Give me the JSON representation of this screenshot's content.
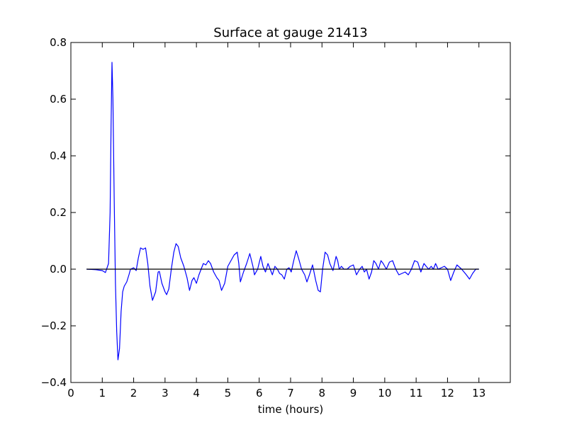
{
  "chart_data": {
    "type": "line",
    "title": "Surface at gauge 21413",
    "xlabel": "time (hours)",
    "ylabel": "",
    "xlim": [
      0,
      14
    ],
    "ylim": [
      -0.4,
      0.8
    ],
    "x_ticks": [
      0,
      1,
      2,
      3,
      4,
      5,
      6,
      7,
      8,
      9,
      10,
      11,
      12,
      13
    ],
    "x_tick_labels": [
      "0",
      "1",
      "2",
      "3",
      "4",
      "5",
      "6",
      "7",
      "8",
      "9",
      "10",
      "11",
      "12",
      "13"
    ],
    "y_ticks": [
      -0.4,
      -0.2,
      0.0,
      0.2,
      0.4,
      0.6,
      0.8
    ],
    "y_tick_labels": [
      "−0.4",
      "−0.2",
      "0.0",
      "0.2",
      "0.4",
      "0.6",
      "0.8"
    ],
    "grid": false,
    "series": [
      {
        "color": "#0000ff",
        "x": [
          0.5,
          0.8,
          1.0,
          1.1,
          1.2,
          1.25,
          1.28,
          1.31,
          1.34,
          1.38,
          1.42,
          1.46,
          1.5,
          1.55,
          1.6,
          1.65,
          1.7,
          1.78,
          1.85,
          1.9,
          2.0,
          2.08,
          2.15,
          2.22,
          2.3,
          2.38,
          2.45,
          2.52,
          2.6,
          2.7,
          2.78,
          2.82,
          2.9,
          3.0,
          3.05,
          3.12,
          3.2,
          3.28,
          3.35,
          3.42,
          3.5,
          3.6,
          3.7,
          3.78,
          3.86,
          3.92,
          4.0,
          4.08,
          4.15,
          4.22,
          4.3,
          4.38,
          4.45,
          4.55,
          4.65,
          4.72,
          4.8,
          4.9,
          5.0,
          5.1,
          5.2,
          5.3,
          5.35,
          5.4,
          5.5,
          5.6,
          5.7,
          5.8,
          5.85,
          5.95,
          6.05,
          6.12,
          6.2,
          6.28,
          6.35,
          6.42,
          6.5,
          6.58,
          6.65,
          6.72,
          6.8,
          6.88,
          6.95,
          7.02,
          7.1,
          7.18,
          7.25,
          7.35,
          7.45,
          7.52,
          7.6,
          7.7,
          7.8,
          7.88,
          7.95,
          8.02,
          8.1,
          8.18,
          8.25,
          8.35,
          8.45,
          8.5,
          8.55,
          8.62,
          8.7,
          8.8,
          8.9,
          9.0,
          9.1,
          9.2,
          9.28,
          9.35,
          9.42,
          9.5,
          9.58,
          9.65,
          9.72,
          9.8,
          9.88,
          9.95,
          10.05,
          10.15,
          10.25,
          10.35,
          10.45,
          10.55,
          10.65,
          10.75,
          10.85,
          10.95,
          11.05,
          11.15,
          11.25,
          11.32,
          11.4,
          11.48,
          11.55,
          11.62,
          11.7,
          11.8,
          11.9,
          12.0,
          12.1,
          12.2,
          12.3,
          12.45,
          12.6,
          12.7,
          12.8,
          12.9,
          13.0
        ],
        "y": [
          0.0,
          -0.002,
          -0.005,
          -0.012,
          0.02,
          0.2,
          0.5,
          0.73,
          0.6,
          0.25,
          -0.05,
          -0.22,
          -0.32,
          -0.28,
          -0.15,
          -0.08,
          -0.06,
          -0.045,
          -0.02,
          0.0,
          0.005,
          -0.005,
          0.04,
          0.075,
          0.07,
          0.075,
          0.02,
          -0.06,
          -0.11,
          -0.08,
          -0.01,
          -0.008,
          -0.05,
          -0.08,
          -0.09,
          -0.07,
          0.0,
          0.06,
          0.09,
          0.08,
          0.04,
          0.01,
          -0.03,
          -0.075,
          -0.04,
          -0.03,
          -0.05,
          -0.02,
          0.0,
          0.02,
          0.015,
          0.03,
          0.02,
          -0.01,
          -0.03,
          -0.04,
          -0.075,
          -0.05,
          0.01,
          0.03,
          0.05,
          0.06,
          0.02,
          -0.045,
          -0.01,
          0.02,
          0.055,
          0.01,
          -0.02,
          0.0,
          0.045,
          0.01,
          -0.01,
          0.02,
          0.0,
          -0.02,
          0.01,
          0.0,
          -0.015,
          -0.02,
          -0.035,
          0.0,
          0.005,
          -0.01,
          0.03,
          0.065,
          0.04,
          0.0,
          -0.02,
          -0.045,
          -0.02,
          0.015,
          -0.04,
          -0.075,
          -0.08,
          0.0,
          0.06,
          0.05,
          0.02,
          -0.005,
          0.045,
          0.03,
          0.0,
          0.01,
          0.0,
          0.0,
          0.01,
          0.015,
          -0.02,
          0.0,
          0.01,
          -0.01,
          0.0,
          -0.035,
          -0.01,
          0.03,
          0.02,
          0.0,
          0.03,
          0.02,
          0.0,
          0.025,
          0.03,
          0.0,
          -0.02,
          -0.015,
          -0.01,
          -0.02,
          0.0,
          0.03,
          0.025,
          -0.01,
          0.02,
          0.01,
          0.0,
          0.01,
          0.0,
          0.02,
          0.0,
          0.005,
          0.01,
          0.0,
          -0.04,
          -0.01,
          0.015,
          0.0,
          -0.02,
          -0.035,
          -0.015,
          0.0,
          0.0
        ]
      },
      {
        "color": "#000000",
        "x": [
          0.5,
          13.0
        ],
        "y": [
          0.0,
          0.0
        ]
      }
    ]
  }
}
